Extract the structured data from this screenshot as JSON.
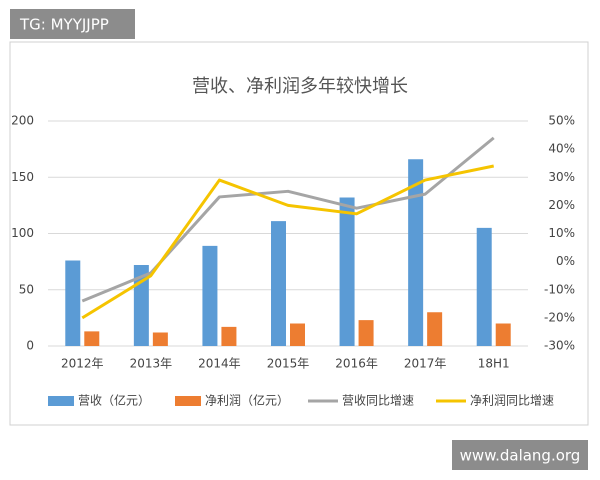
{
  "watermarks": [
    "TG: MYYJJPP",
    "www.dalang.org"
  ],
  "chart_data": {
    "type": "bar-line",
    "title": "营收、净利润多年较快增长",
    "categories": [
      "2012年",
      "2013年",
      "2014年",
      "2015年",
      "2016年",
      "2017年",
      "18H1"
    ],
    "series": [
      {
        "name": "营收（亿元）",
        "color": "#5b9bd5",
        "type": "bar",
        "values": [
          76,
          72,
          89,
          111,
          132,
          166,
          105
        ]
      },
      {
        "name": "净利润（亿元）",
        "color": "#ed7d31",
        "type": "bar",
        "values": [
          13,
          12,
          17,
          20,
          23,
          30,
          20
        ]
      },
      {
        "name": "营收同比增速",
        "color": "#a5a5a5",
        "type": "line",
        "axis": "y2",
        "values": [
          -14,
          -4,
          23,
          25,
          19,
          24,
          44
        ]
      },
      {
        "name": "净利润同比增速",
        "color": "#f5c400",
        "type": "line",
        "axis": "y2",
        "values": [
          -20,
          -5,
          29,
          20,
          17,
          29,
          34
        ]
      }
    ],
    "ylim": [
      0,
      200
    ],
    "yticks": [
      0,
      50,
      100,
      150,
      200
    ],
    "y2lim": [
      -30,
      50
    ],
    "y2ticks": [
      {
        "value": -30,
        "label": "-30%"
      },
      {
        "value": -20,
        "label": "-20%"
      },
      {
        "value": -10,
        "label": "-10%"
      },
      {
        "value": 0,
        "label": "0%"
      },
      {
        "value": 10,
        "label": "10%"
      },
      {
        "value": 20,
        "label": "20%"
      },
      {
        "value": 30,
        "label": "30%"
      },
      {
        "value": 40,
        "label": "40%"
      },
      {
        "value": 50,
        "label": "50%"
      }
    ],
    "grid": true
  }
}
